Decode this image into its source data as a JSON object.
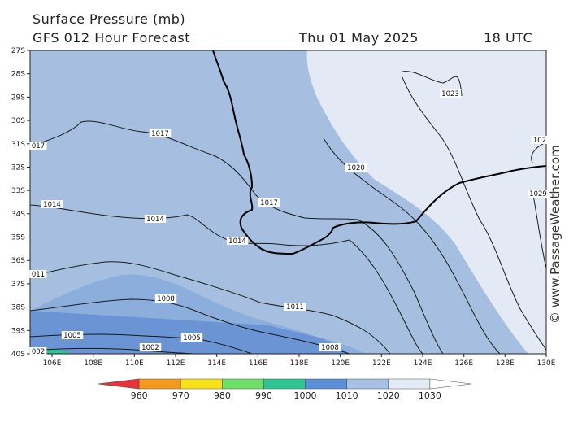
{
  "header": {
    "title": "Surface Pressure (mb)",
    "model": "GFS 012 Hour Forecast",
    "date": "Thu 01 May 2025",
    "time": "18 UTC"
  },
  "axes": {
    "lat_labels": [
      "27S",
      "28S",
      "29S",
      "30S",
      "31S",
      "32S",
      "33S",
      "34S",
      "35S",
      "36S",
      "37S",
      "38S",
      "39S",
      "40S"
    ],
    "lon_labels": [
      "106E",
      "108E",
      "110E",
      "112E",
      "114E",
      "116E",
      "118E",
      "120E",
      "122E",
      "124E",
      "126E",
      "128E",
      "130E"
    ]
  },
  "isobar_labels": [
    {
      "text": "1023"
    },
    {
      "text": "1020"
    },
    {
      "text": "1017"
    },
    {
      "text": "017"
    },
    {
      "text": "1017"
    },
    {
      "text": "1014"
    },
    {
      "text": "1014"
    },
    {
      "text": "1014"
    },
    {
      "text": "011"
    },
    {
      "text": "1011"
    },
    {
      "text": "1008"
    },
    {
      "text": "1005"
    },
    {
      "text": "1005"
    },
    {
      "text": "002"
    },
    {
      "text": "1002"
    },
    {
      "text": "1008"
    },
    {
      "text": "102"
    },
    {
      "text": "1029"
    }
  ],
  "legend": {
    "labels": [
      "960",
      "970",
      "980",
      "990",
      "1000",
      "1010",
      "1020",
      "1030"
    ],
    "colors": [
      "#e8333a",
      "#f39a1c",
      "#f7e21a",
      "#6ee06a",
      "#2ec48f",
      "#5b8fd6",
      "#a5c0e2",
      "#e3ebf6",
      "#ffffff"
    ]
  },
  "palette": {
    "band_1000_1010": "#6a94d4",
    "band_1010_1020": "#a6bfe0",
    "band_1020_1030": "#e3eaf5",
    "band_990_1000": "#2ec48f"
  },
  "watermark": "© www.PassageWeather.com"
}
